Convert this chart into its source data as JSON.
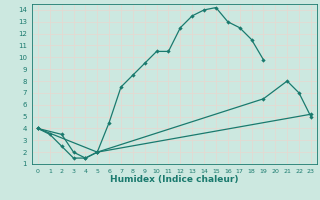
{
  "xlabel": "Humidex (Indice chaleur)",
  "bg_color": "#cce8e0",
  "grid_color": "#b0d8d0",
  "line_color": "#1a7a6e",
  "xlim": [
    -0.5,
    23.5
  ],
  "ylim": [
    1,
    14.5
  ],
  "xticks": [
    0,
    1,
    2,
    3,
    4,
    5,
    6,
    7,
    8,
    9,
    10,
    11,
    12,
    13,
    14,
    15,
    16,
    17,
    18,
    19,
    20,
    21,
    22,
    23
  ],
  "yticks": [
    1,
    2,
    3,
    4,
    5,
    6,
    7,
    8,
    9,
    10,
    11,
    12,
    13,
    14
  ],
  "curve1_x": [
    0,
    1,
    2,
    3,
    4,
    5,
    6,
    7,
    8,
    9,
    10,
    11,
    12,
    13,
    14,
    15,
    16,
    17,
    18,
    19
  ],
  "curve1_y": [
    4.0,
    3.5,
    2.5,
    1.5,
    1.5,
    2.0,
    4.5,
    7.5,
    8.5,
    9.5,
    10.5,
    10.5,
    12.5,
    13.5,
    14.0,
    14.2,
    13.0,
    12.5,
    11.5,
    9.8
  ],
  "curve2_x": [
    0,
    2,
    3,
    4,
    5,
    19,
    21,
    22,
    23
  ],
  "curve2_y": [
    4.0,
    3.5,
    2.0,
    1.5,
    2.0,
    6.5,
    8.0,
    7.0,
    5.0
  ],
  "curve3_x": [
    0,
    5,
    23
  ],
  "curve3_y": [
    4.0,
    2.0,
    5.2
  ]
}
